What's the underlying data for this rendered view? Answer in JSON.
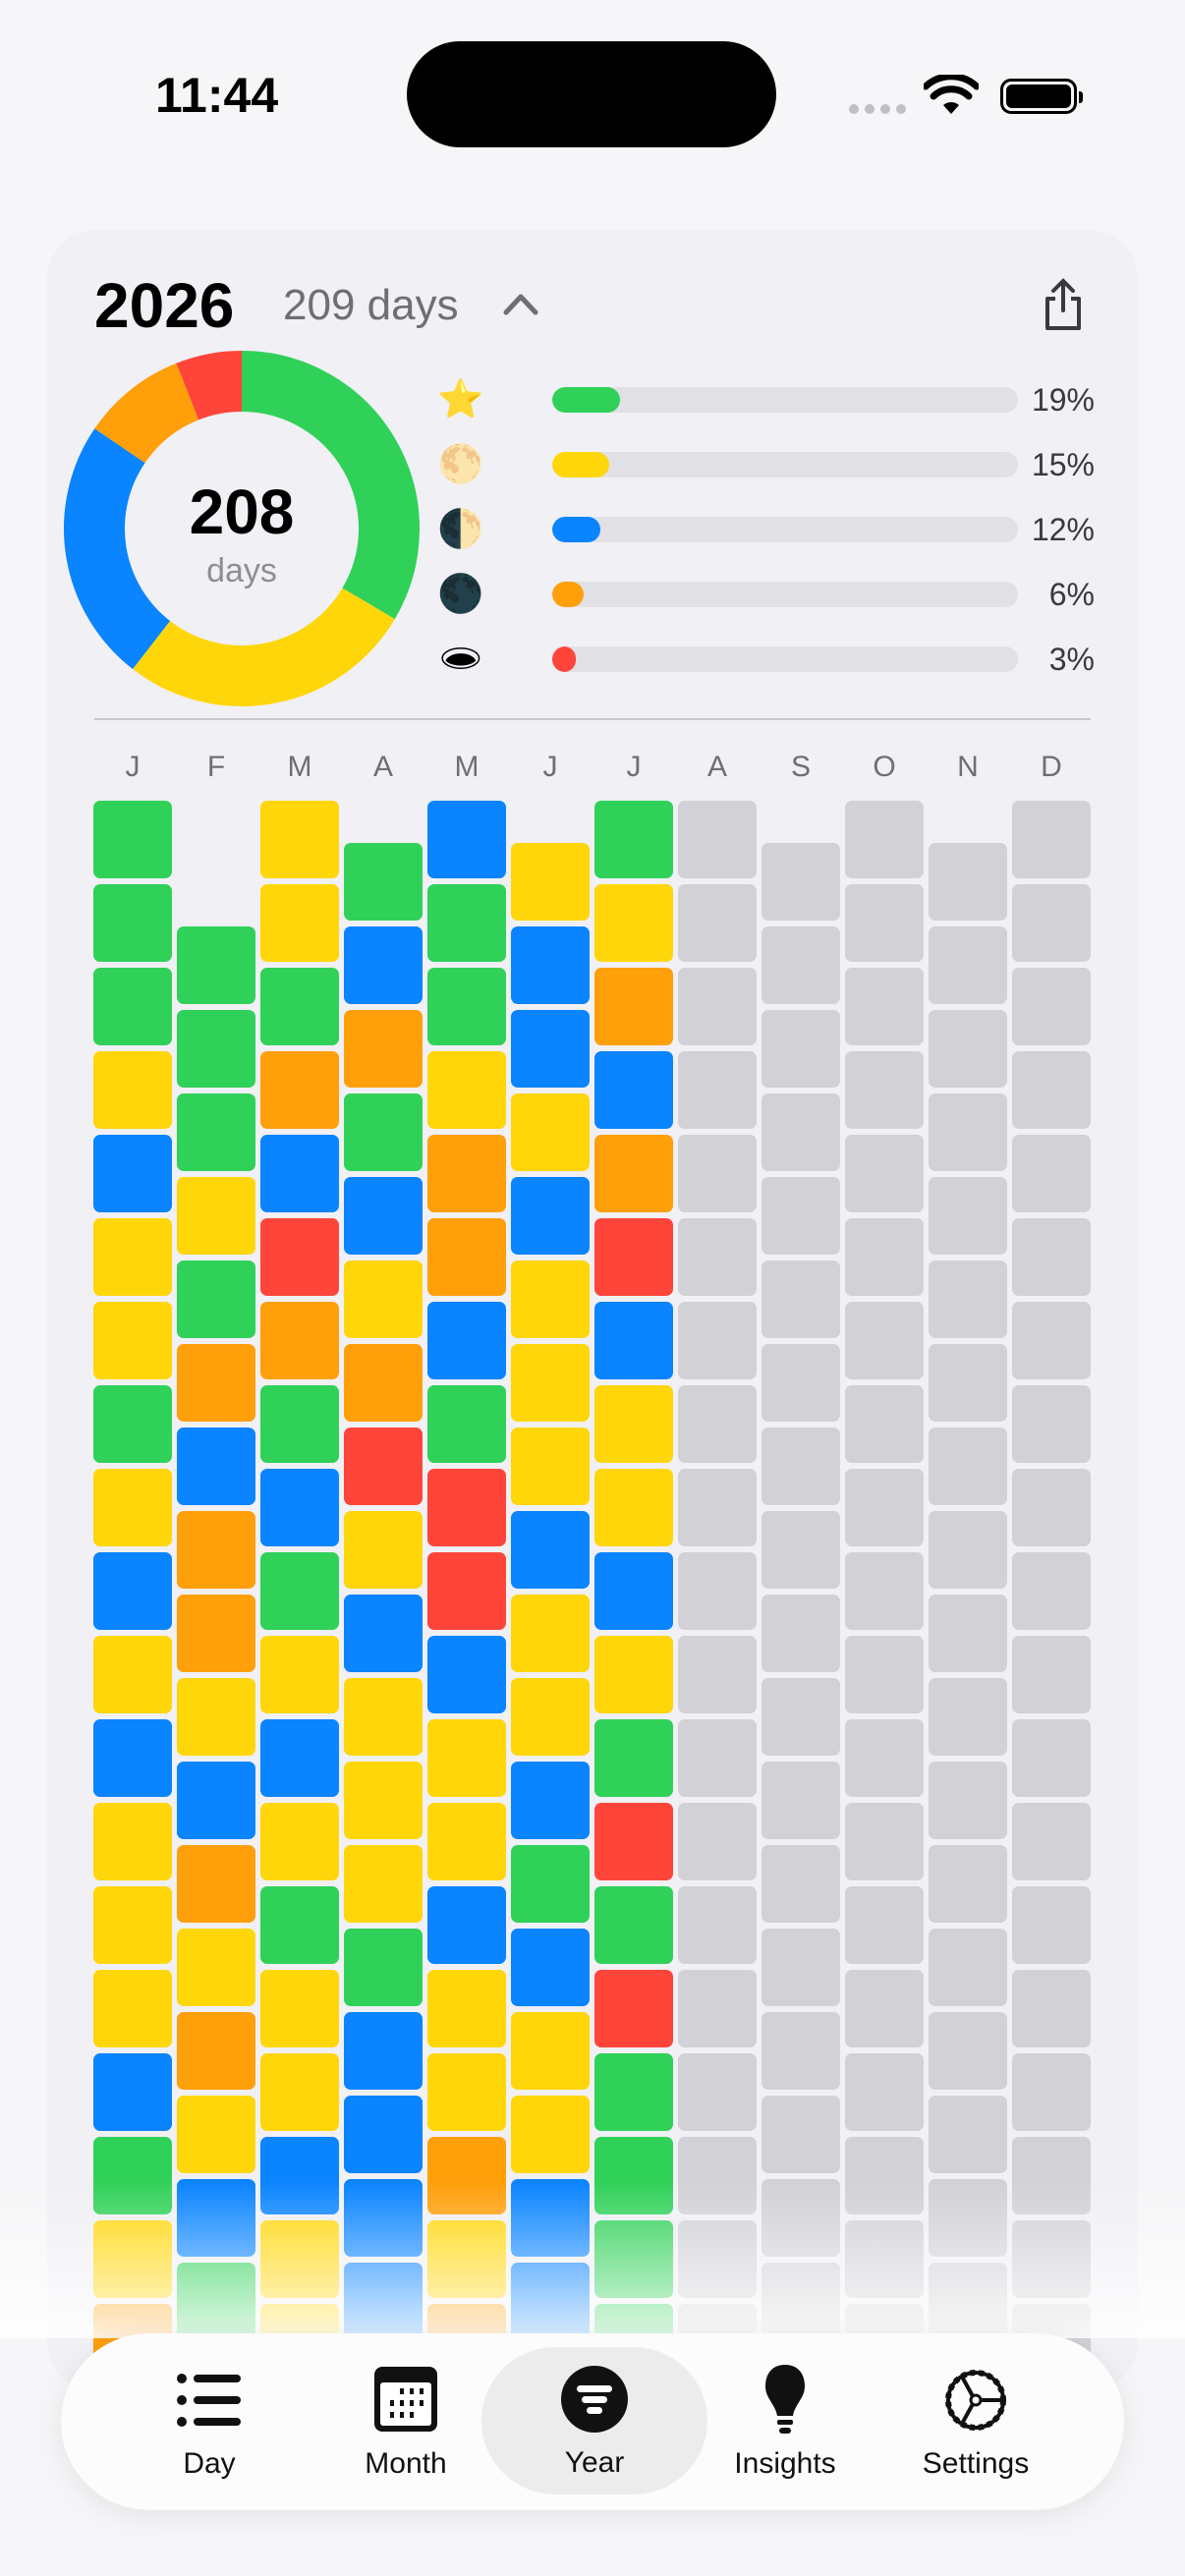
{
  "status_bar": {
    "time": "11:44"
  },
  "header": {
    "year": "2026",
    "days_label": "209 days"
  },
  "donut": {
    "count": "208",
    "unit": "days",
    "segments": [
      {
        "color": "#30d158",
        "fraction": 0.335
      },
      {
        "color": "#ffd60a",
        "fraction": 0.27
      },
      {
        "color": "#0a84ff",
        "fraction": 0.24
      },
      {
        "color": "#ff9f0a",
        "fraction": 0.095
      },
      {
        "color": "#ff453a",
        "fraction": 0.06
      }
    ]
  },
  "legend": [
    {
      "icon": "star-icon",
      "glyph": "⭐",
      "color": "#30d158",
      "percent": 19,
      "label": "19%"
    },
    {
      "icon": "full-moon-icon",
      "glyph": "🌕",
      "color": "#ffd60a",
      "percent": 15,
      "label": "15%"
    },
    {
      "icon": "half-moon-icon",
      "glyph": "🌓",
      "color": "#0a84ff",
      "percent": 12,
      "label": "12%"
    },
    {
      "icon": "new-moon-icon",
      "glyph": "🌑",
      "color": "#ff9f0a",
      "percent": 6,
      "label": "6%"
    },
    {
      "icon": "hole-icon",
      "glyph": "🕳",
      "color": "#ff453a",
      "percent": 3,
      "label": "3%"
    }
  ],
  "colors": {
    "G": "#30d158",
    "Y": "#ffd60a",
    "B": "#0a84ff",
    "O": "#ff9f0a",
    "R": "#ff453a",
    "X": "#d1d1d6"
  },
  "months": [
    {
      "label": "J",
      "offset": 0,
      "cells": "GGGYBYYGYBYBYYYBGYO"
    },
    {
      "label": "F",
      "offset": 1.5,
      "cells": "GGGYGOBOOYBOYOYBG"
    },
    {
      "label": "M",
      "offset": 0,
      "cells": "YYGOBROGBGYBYGYYBYY"
    },
    {
      "label": "A",
      "offset": 0.5,
      "cells": "GBOGBYORYBYYYGBBBB"
    },
    {
      "label": "M",
      "offset": 0,
      "cells": "BGGYOOBGRRBYYBYYOYO"
    },
    {
      "label": "J",
      "offset": 0.5,
      "cells": "YBBYBYYYBYYBGBYYBB"
    },
    {
      "label": "J",
      "offset": 0,
      "cells": "GYOBORBYYBYGRGRGGGG"
    },
    {
      "label": "A",
      "offset": 0,
      "cells": "XXXXXXXXXXXXXXXXXXX"
    },
    {
      "label": "S",
      "offset": 0.5,
      "cells": "XXXXXXXXXXXXXXXXXX"
    },
    {
      "label": "O",
      "offset": 0,
      "cells": "XXXXXXXXXXXXXXXXXXX"
    },
    {
      "label": "N",
      "offset": 0.5,
      "cells": "XXXXXXXXXXXXXXXXXX"
    },
    {
      "label": "D",
      "offset": 0,
      "cells": "XXXXXXXXXXXXXXXXXXX"
    }
  ],
  "tabs": [
    {
      "label": "Day"
    },
    {
      "label": "Month"
    },
    {
      "label": "Year",
      "selected": true
    },
    {
      "label": "Insights"
    },
    {
      "label": "Settings"
    }
  ]
}
